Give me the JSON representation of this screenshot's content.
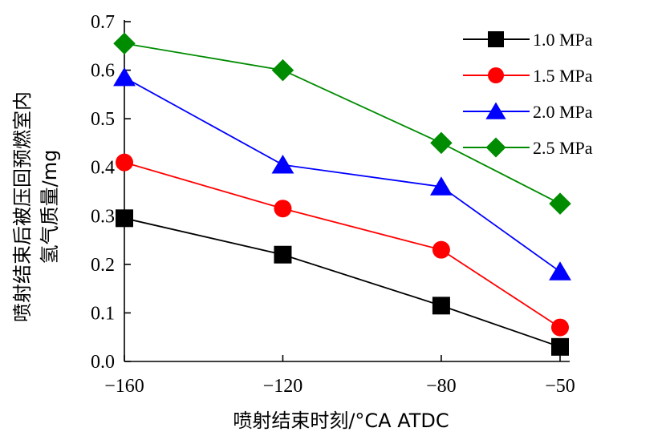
{
  "chart_data": {
    "type": "line",
    "xlabel": "喷射结束时刻/°CA ATDC",
    "ylabel_line1": "喷射结束后被压回预燃室内",
    "ylabel_line2": "氢气质量/mg",
    "x": [
      -160,
      -120,
      -80,
      -50
    ],
    "xticks": [
      -160,
      -120,
      -80,
      -50
    ],
    "xtick_labels": [
      "−160",
      "−120",
      "−80",
      "−50"
    ],
    "ylim": [
      0,
      0.7
    ],
    "yticks": [
      0.0,
      0.1,
      0.2,
      0.3,
      0.4,
      0.5,
      0.6,
      0.7
    ],
    "ytick_labels": [
      "0.0",
      "0.1",
      "0.2",
      "0.3",
      "0.4",
      "0.5",
      "0.6",
      "0.7"
    ],
    "grid": false,
    "legend_position": "top-right",
    "series": [
      {
        "name": "1.0 MPa",
        "color": "#000000",
        "marker": "square",
        "values": [
          0.295,
          0.22,
          0.115,
          0.03
        ]
      },
      {
        "name": "1.5 MPa",
        "color": "#ff0000",
        "marker": "circle",
        "values": [
          0.41,
          0.315,
          0.23,
          0.07
        ]
      },
      {
        "name": "2.0 MPa",
        "color": "#0000ff",
        "marker": "triangle",
        "values": [
          0.585,
          0.405,
          0.36,
          0.185
        ]
      },
      {
        "name": "2.5 MPa",
        "color": "#008c00",
        "marker": "diamond",
        "values": [
          0.655,
          0.6,
          0.45,
          0.325
        ]
      }
    ]
  }
}
